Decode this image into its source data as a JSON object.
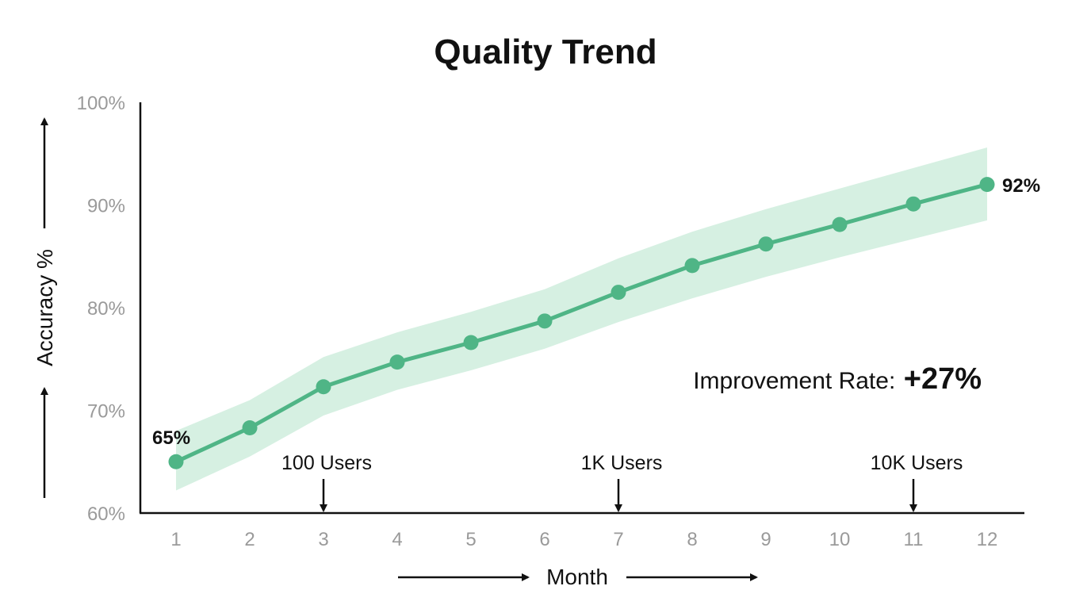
{
  "chart_data": {
    "type": "line",
    "title": "Quality Trend",
    "xlabel": "Month",
    "ylabel": "Accuracy %",
    "x": [
      1,
      2,
      3,
      4,
      5,
      6,
      7,
      8,
      9,
      10,
      11,
      12
    ],
    "x_tick_labels": [
      "1",
      "2",
      "3",
      "4",
      "5",
      "6",
      "7",
      "8",
      "9",
      "10",
      "11",
      "12"
    ],
    "ylim": [
      60,
      100
    ],
    "y_ticks": [
      60,
      70,
      80,
      90,
      100
    ],
    "y_tick_labels": [
      "60%",
      "70%",
      "80%",
      "90%",
      "100%"
    ],
    "series": [
      {
        "values": [
          65,
          68.3,
          72.3,
          74.7,
          76.6,
          78.7,
          81.5,
          84.1,
          86.2,
          88.1,
          90.1,
          92
        ],
        "band_lower": [
          62.2,
          65.5,
          69.5,
          72,
          73.9,
          76,
          78.6,
          80.9,
          83,
          84.9,
          86.7,
          88.5
        ],
        "band_upper": [
          68,
          71,
          75.2,
          77.6,
          79.6,
          81.8,
          84.8,
          87.4,
          89.6,
          91.6,
          93.6,
          95.6
        ],
        "color": "#4fb586",
        "band_color": "#d6f0e2"
      }
    ],
    "start_label": "65%",
    "end_label": "92%",
    "annotations": [
      {
        "x": 3,
        "label": "100 Users"
      },
      {
        "x": 7,
        "label": "1K Users"
      },
      {
        "x": 11,
        "label": "10K Users"
      }
    ],
    "improvement": {
      "label": "Improvement Rate:",
      "value": "+27%"
    },
    "grid": false,
    "legend": "none"
  }
}
